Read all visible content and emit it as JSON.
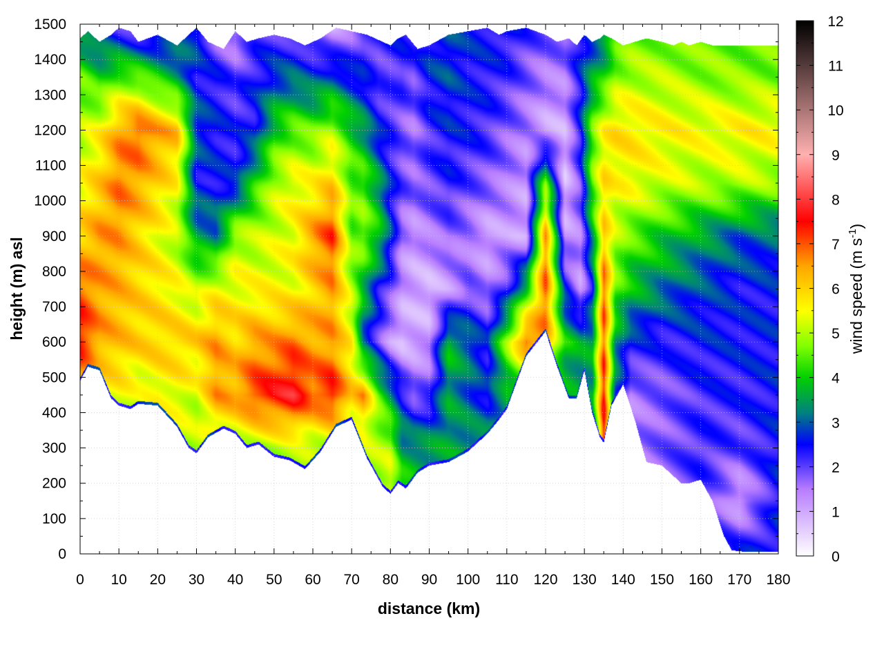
{
  "chart_data": {
    "type": "heatmap",
    "title": "",
    "xlabel": "distance (km)",
    "ylabel": "height (m) asl",
    "colorbar_label": "wind speed (m s",
    "colorbar_label_sup": "-1",
    "colorbar_label_end": ")",
    "xlim": [
      0,
      180
    ],
    "ylim": [
      0,
      1500
    ],
    "zlim": [
      0,
      12
    ],
    "xticks": [
      "0",
      "10",
      "20",
      "30",
      "40",
      "50",
      "60",
      "70",
      "80",
      "90",
      "100",
      "110",
      "120",
      "130",
      "140",
      "150",
      "160",
      "170",
      "180"
    ],
    "yticks": [
      "0",
      "100",
      "200",
      "300",
      "400",
      "500",
      "600",
      "700",
      "800",
      "900",
      "1000",
      "1100",
      "1200",
      "1300",
      "1400",
      "1500"
    ],
    "cticks": [
      "0",
      "1",
      "2",
      "3",
      "4",
      "5",
      "6",
      "7",
      "8",
      "9",
      "10",
      "11",
      "12"
    ],
    "grid": true,
    "colormap": [
      {
        "v": 0,
        "color": "#ffffff"
      },
      {
        "v": 1.5,
        "color": "#b77cff"
      },
      {
        "v": 2.5,
        "color": "#0000ff"
      },
      {
        "v": 3.2,
        "color": "#008080"
      },
      {
        "v": 4,
        "color": "#00d000"
      },
      {
        "v": 4.7,
        "color": "#7fff00"
      },
      {
        "v": 5.5,
        "color": "#ffff00"
      },
      {
        "v": 6.5,
        "color": "#ffa500"
      },
      {
        "v": 7.5,
        "color": "#ff0000"
      },
      {
        "v": 9,
        "color": "#ffb0b0"
      },
      {
        "v": 12,
        "color": "#000000"
      }
    ],
    "terrain": {
      "x": [
        0,
        2,
        5,
        8,
        10,
        13,
        15,
        20,
        25,
        28,
        30,
        33,
        37,
        40,
        43,
        46,
        50,
        54,
        58,
        62,
        66,
        70,
        74,
        78,
        80,
        82,
        84,
        87,
        90,
        95,
        100,
        105,
        108,
        110,
        115,
        120,
        123,
        126,
        128,
        130,
        132,
        134,
        135,
        137,
        140,
        143,
        146,
        150,
        153,
        155,
        157,
        160,
        163,
        166,
        168,
        172,
        175,
        180
      ],
      "base": [
        490,
        530,
        520,
        440,
        420,
        410,
        425,
        420,
        360,
        300,
        285,
        330,
        355,
        340,
        300,
        310,
        275,
        265,
        240,
        290,
        360,
        380,
        270,
        190,
        170,
        200,
        185,
        230,
        250,
        260,
        290,
        340,
        380,
        410,
        560,
        630,
        530,
        440,
        440,
        520,
        400,
        330,
        315,
        420,
        480,
        380,
        260,
        250,
        220,
        200,
        200,
        210,
        150,
        50,
        10,
        5,
        5,
        5
      ],
      "top": [
        1460,
        1480,
        1450,
        1470,
        1490,
        1480,
        1450,
        1470,
        1440,
        1470,
        1490,
        1450,
        1430,
        1480,
        1450,
        1460,
        1470,
        1460,
        1440,
        1460,
        1490,
        1480,
        1470,
        1450,
        1440,
        1460,
        1470,
        1430,
        1440,
        1470,
        1480,
        1490,
        1470,
        1480,
        1490,
        1470,
        1450,
        1460,
        1440,
        1470,
        1450,
        1460,
        1470,
        1460,
        1440,
        1450,
        1460,
        1450,
        1440,
        1450,
        1440,
        1450,
        1440,
        1440,
        1440,
        1440,
        1440,
        1440
      ]
    },
    "field": {
      "x": [
        0,
        5,
        10,
        15,
        20,
        25,
        30,
        35,
        40,
        45,
        50,
        55,
        60,
        65,
        70,
        73,
        77,
        80,
        83,
        86,
        90,
        95,
        100,
        105,
        110,
        115,
        120,
        125,
        129,
        132,
        135,
        138,
        142,
        150,
        160,
        170,
        180
      ],
      "z": [
        0,
        150,
        300,
        450,
        600,
        750,
        900,
        1050,
        1200,
        1350,
        1500
      ],
      "values": [
        [
          5.0,
          4.5,
          4.6,
          6.0,
          7.5,
          7.0,
          6.0,
          5.5,
          5.0,
          4.5,
          3.0
        ],
        [
          5.0,
          5.0,
          5.0,
          5.5,
          6.5,
          6.5,
          6.5,
          6.0,
          5.5,
          4.0,
          2.5
        ],
        [
          5.0,
          5.0,
          5.0,
          5.5,
          6.2,
          6.3,
          6.5,
          6.8,
          6.5,
          4.5,
          2.0
        ],
        [
          5.0,
          5.0,
          4.8,
          5.2,
          6.0,
          6.0,
          6.0,
          6.5,
          7.0,
          4.5,
          1.5
        ],
        [
          5.0,
          5.0,
          5.0,
          5.5,
          6.0,
          5.8,
          5.5,
          6.0,
          6.5,
          4.0,
          1.8
        ],
        [
          5.0,
          5.0,
          5.0,
          5.5,
          6.0,
          5.5,
          5.0,
          5.5,
          6.2,
          3.5,
          2.5
        ],
        [
          5.0,
          5.0,
          5.0,
          5.2,
          6.0,
          5.0,
          3.5,
          2.5,
          3.0,
          2.5,
          3.0
        ],
        [
          5.0,
          5.0,
          5.0,
          6.5,
          6.5,
          5.5,
          3.2,
          2.5,
          2.5,
          2.4,
          1.5
        ],
        [
          5.0,
          5.0,
          5.0,
          6.5,
          6.0,
          5.5,
          5.0,
          2.5,
          2.3,
          2.0,
          1.2
        ],
        [
          5.0,
          5.0,
          5.0,
          7.2,
          6.5,
          5.5,
          5.0,
          4.0,
          2.5,
          2.4,
          2.0
        ],
        [
          5.0,
          5.0,
          5.0,
          7.5,
          6.5,
          5.5,
          5.2,
          5.0,
          4.0,
          2.8,
          2.0
        ],
        [
          5.0,
          5.0,
          5.0,
          7.8,
          6.8,
          5.5,
          5.5,
          5.5,
          4.5,
          3.0,
          1.8
        ],
        [
          5.0,
          5.0,
          5.0,
          7.0,
          6.5,
          6.0,
          6.5,
          5.5,
          4.5,
          2.8,
          1.5
        ],
        [
          5.0,
          5.0,
          5.0,
          7.5,
          6.5,
          6.5,
          7.2,
          6.0,
          5.0,
          3.0,
          1.0
        ],
        [
          5.0,
          5.0,
          5.0,
          6.0,
          5.5,
          5.0,
          4.5,
          4.5,
          4.0,
          2.6,
          1.5
        ],
        [
          5.0,
          5.0,
          5.0,
          6.5,
          3.0,
          3.8,
          4.8,
          4.5,
          3.5,
          2.5,
          2.0
        ],
        [
          5.0,
          5.0,
          5.0,
          4.5,
          2.0,
          2.5,
          4.0,
          3.5,
          2.5,
          2.0,
          2.2
        ],
        [
          5.5,
          5.5,
          5.0,
          3.5,
          1.2,
          2.0,
          2.8,
          2.5,
          2.2,
          2.0,
          2.5
        ],
        [
          5.0,
          4.5,
          3.5,
          2.5,
          0.8,
          1.2,
          1.5,
          2.0,
          1.8,
          2.2,
          2.4
        ],
        [
          4.5,
          4.0,
          3.5,
          1.8,
          1.0,
          1.0,
          1.2,
          1.8,
          1.6,
          2.0,
          2.3
        ],
        [
          3.5,
          3.5,
          3.5,
          2.0,
          1.2,
          0.8,
          1.5,
          2.0,
          2.2,
          2.6,
          2.6
        ],
        [
          3.5,
          3.5,
          3.5,
          3.5,
          3.8,
          1.2,
          1.8,
          2.3,
          2.5,
          2.8,
          2.8
        ],
        [
          3.5,
          3.5,
          3.5,
          3.0,
          3.2,
          1.8,
          1.5,
          2.0,
          2.4,
          2.5,
          2.6
        ],
        [
          3.5,
          3.5,
          3.5,
          2.5,
          2.5,
          1.5,
          1.0,
          1.8,
          2.2,
          2.4,
          2.5
        ],
        [
          3.5,
          3.5,
          3.5,
          3.5,
          4.8,
          2.2,
          1.2,
          1.5,
          1.8,
          2.2,
          2.5
        ],
        [
          3.5,
          3.5,
          3.5,
          3.5,
          7.0,
          4.0,
          1.0,
          1.2,
          1.5,
          1.8,
          2.2
        ],
        [
          3.5,
          3.5,
          3.5,
          3.5,
          6.5,
          7.0,
          6.5,
          4.5,
          1.0,
          1.5,
          2.0
        ],
        [
          3.5,
          3.5,
          3.5,
          3.5,
          4.0,
          2.5,
          1.2,
          0.8,
          1.0,
          1.5,
          2.0
        ],
        [
          3.5,
          3.5,
          3.5,
          3.5,
          3.5,
          1.2,
          1.5,
          2.0,
          2.5,
          2.5,
          2.6
        ],
        [
          2.0,
          2.0,
          2.0,
          3.5,
          3.5,
          2.5,
          3.5,
          4.5,
          4.5,
          3.5,
          2.5
        ],
        [
          7.5,
          7.5,
          7.5,
          7.5,
          7.0,
          7.0,
          6.0,
          5.8,
          5.5,
          4.0,
          3.0
        ],
        [
          3.0,
          3.0,
          3.0,
          3.0,
          3.5,
          4.5,
          5.0,
          5.5,
          5.8,
          4.8,
          4.0
        ],
        [
          1.5,
          1.5,
          1.5,
          1.5,
          2.5,
          3.8,
          4.5,
          5.5,
          5.8,
          5.0,
          4.5
        ],
        [
          1.8,
          1.8,
          1.8,
          1.8,
          2.3,
          3.2,
          4.0,
          5.2,
          5.6,
          5.0,
          4.5
        ],
        [
          2.2,
          2.2,
          2.2,
          2.2,
          2.5,
          2.8,
          3.5,
          5.0,
          5.5,
          4.8,
          4.5
        ],
        [
          2.5,
          1.0,
          2.0,
          2.3,
          2.5,
          2.5,
          3.0,
          5.0,
          5.6,
          4.7,
          4.5
        ],
        [
          2.5,
          2.5,
          2.5,
          2.5,
          2.5,
          2.5,
          3.0,
          4.8,
          5.6,
          4.7,
          4.5
        ]
      ]
    }
  }
}
